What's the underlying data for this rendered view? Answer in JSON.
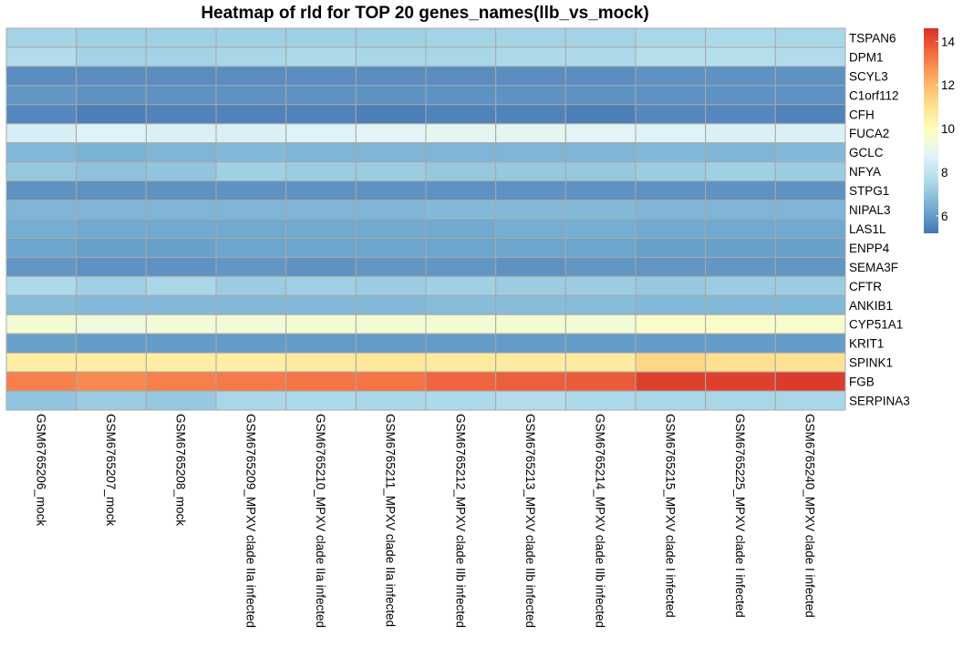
{
  "chart_data": {
    "type": "heatmap",
    "title": "Heatmap of rld for TOP 20 genes_names(llb_vs_mock)",
    "rows": [
      "TSPAN6",
      "DPM1",
      "SCYL3",
      "C1orf112",
      "CFH",
      "FUCA2",
      "GCLC",
      "NFYA",
      "STPG1",
      "NIPAL3",
      "LAS1L",
      "ENPP4",
      "SEMA3F",
      "CFTR",
      "ANKIB1",
      "CYP51A1",
      "KRIT1",
      "SPINK1",
      "FGB",
      "SERPINA3"
    ],
    "columns": [
      "GSM6765206_mock",
      "GSM6765207_mock",
      "GSM6765208_mock",
      "GSM6765209_MPXV clade IIa infected",
      "GSM6765210_MPXV clade IIa infected",
      "GSM6765211_MPXV clade IIa infected",
      "GSM6765212_MPXV clade IIb infected",
      "GSM6765213_MPXV clade IIb infected",
      "GSM6765214_MPXV clade IIb infected",
      "GSM6765215_MPXV clade I infected",
      "GSM6765225_MPXV clade I infected",
      "GSM6765240_MPXV clade I infected"
    ],
    "values": [
      [
        7.4,
        7.3,
        7.3,
        7.3,
        7.3,
        7.3,
        7.4,
        7.4,
        7.4,
        7.5,
        7.6,
        7.5
      ],
      [
        7.7,
        7.4,
        7.4,
        7.5,
        7.6,
        7.5,
        7.5,
        7.6,
        7.6,
        7.8,
        7.8,
        7.7
      ],
      [
        5.7,
        5.7,
        5.7,
        5.7,
        5.7,
        5.7,
        5.7,
        5.7,
        5.7,
        5.8,
        5.8,
        5.8
      ],
      [
        5.9,
        5.8,
        5.8,
        5.8,
        5.8,
        5.8,
        5.8,
        5.8,
        5.8,
        5.8,
        5.8,
        5.8
      ],
      [
        5.6,
        5.4,
        5.5,
        5.5,
        5.5,
        5.4,
        5.5,
        5.5,
        5.4,
        5.6,
        5.6,
        5.5
      ],
      [
        8.5,
        8.7,
        8.6,
        8.6,
        8.7,
        8.8,
        8.9,
        8.9,
        8.8,
        8.7,
        8.6,
        8.6
      ],
      [
        6.7,
        6.5,
        6.6,
        6.7,
        6.6,
        6.6,
        6.6,
        6.6,
        6.6,
        6.7,
        6.6,
        6.7
      ],
      [
        7.1,
        6.9,
        7.0,
        7.3,
        7.2,
        7.2,
        7.1,
        7.1,
        7.1,
        7.2,
        7.3,
        7.2
      ],
      [
        5.8,
        5.8,
        5.8,
        5.8,
        5.8,
        5.8,
        5.8,
        5.8,
        5.8,
        5.8,
        5.8,
        5.8
      ],
      [
        6.6,
        6.6,
        6.6,
        6.6,
        6.6,
        6.6,
        6.7,
        6.7,
        6.7,
        6.6,
        6.6,
        6.6
      ],
      [
        6.4,
        6.3,
        6.3,
        6.3,
        6.3,
        6.3,
        6.3,
        6.4,
        6.4,
        6.3,
        6.3,
        6.3
      ],
      [
        6.2,
        6.1,
        6.1,
        6.2,
        6.2,
        6.2,
        6.2,
        6.2,
        6.2,
        6.1,
        6.1,
        6.1
      ],
      [
        5.9,
        5.8,
        5.8,
        5.9,
        5.8,
        5.9,
        5.9,
        5.8,
        5.9,
        5.9,
        5.9,
        5.9
      ],
      [
        7.6,
        7.3,
        7.5,
        7.2,
        7.3,
        7.2,
        7.3,
        7.2,
        7.2,
        7.1,
        7.2,
        7.2
      ],
      [
        6.8,
        6.7,
        6.7,
        6.7,
        6.7,
        6.7,
        6.8,
        6.8,
        6.8,
        6.7,
        6.7,
        6.7
      ],
      [
        9.5,
        9.3,
        9.4,
        9.4,
        9.5,
        9.5,
        9.5,
        9.5,
        9.4,
        9.7,
        9.7,
        9.6
      ],
      [
        6.1,
        6.0,
        6.0,
        6.0,
        6.0,
        6.0,
        6.0,
        6.0,
        6.0,
        6.0,
        6.0,
        6.0
      ],
      [
        10.6,
        10.6,
        10.6,
        10.6,
        10.7,
        10.8,
        10.7,
        10.7,
        10.7,
        11.3,
        11.1,
        11.0
      ],
      [
        13.1,
        12.9,
        13.1,
        13.2,
        13.3,
        13.3,
        13.6,
        13.7,
        13.8,
        14.3,
        14.3,
        14.4
      ],
      [
        7.0,
        7.2,
        7.1,
        7.5,
        7.6,
        7.5,
        7.6,
        7.7,
        7.6,
        7.5,
        7.5,
        7.5
      ]
    ],
    "scale": {
      "min": 5.2,
      "max": 14.6
    },
    "legend_ticks": [
      6,
      8,
      10,
      12,
      14
    ],
    "palette": [
      "#4575B4",
      "#74ADD1",
      "#ABD9E9",
      "#E0F3F8",
      "#FFFFBF",
      "#FEE090",
      "#FDAE61",
      "#F46D43",
      "#D73027"
    ],
    "grid": true,
    "legend_position": "right"
  }
}
